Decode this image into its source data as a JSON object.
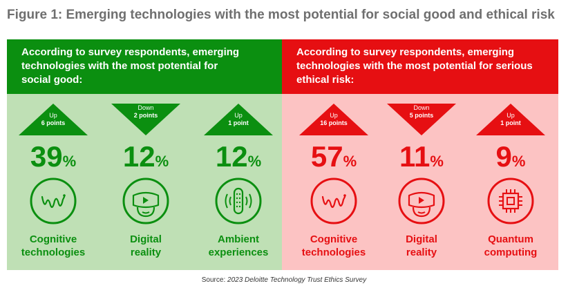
{
  "title": "Figure 1: Emerging technologies with the most potential for social good and ethical risk",
  "colors": {
    "green": "#0b8f10",
    "green_bg": "#bfe0b5",
    "red": "#e60f12",
    "red_bg": "#fcc3c3"
  },
  "panels": [
    {
      "header_line1": "According to survey respondents, emerging",
      "header_line2": "technologies with the most potential for",
      "header_line3": "social good:",
      "items": [
        {
          "direction": "up",
          "dir_label": "Up",
          "change": "6 points",
          "value": "39",
          "unit": "%",
          "icon": "cognitive-wave-icon",
          "label_line1": "Cognitive",
          "label_line2": "technologies"
        },
        {
          "direction": "down",
          "dir_label": "Down",
          "change": "2 points",
          "value": "12",
          "unit": "%",
          "icon": "vr-headset-icon",
          "label_line1": "Digital",
          "label_line2": "reality"
        },
        {
          "direction": "up",
          "dir_label": "Up",
          "change": "1 point",
          "value": "12",
          "unit": "%",
          "icon": "smart-speaker-icon",
          "label_line1": "Ambient",
          "label_line2": "experiences"
        }
      ]
    },
    {
      "header_line1": "According to survey respondents, emerging",
      "header_line2": "technologies with the most potential for serious",
      "header_line3": "ethical risk:",
      "items": [
        {
          "direction": "up",
          "dir_label": "Up",
          "change": "16 points",
          "value": "57",
          "unit": "%",
          "icon": "cognitive-wave-icon",
          "label_line1": "Cognitive",
          "label_line2": "technologies"
        },
        {
          "direction": "down",
          "dir_label": "Down",
          "change": "5 points",
          "value": "11",
          "unit": "%",
          "icon": "vr-headset-icon",
          "label_line1": "Digital",
          "label_line2": "reality"
        },
        {
          "direction": "up",
          "dir_label": "Up",
          "change": "1 point",
          "value": "9",
          "unit": "%",
          "icon": "microchip-icon",
          "label_line1": "Quantum",
          "label_line2": "computing"
        }
      ]
    }
  ],
  "source_prefix": "Source: ",
  "source_text": "2023 Deloitte Technology Trust Ethics Survey"
}
